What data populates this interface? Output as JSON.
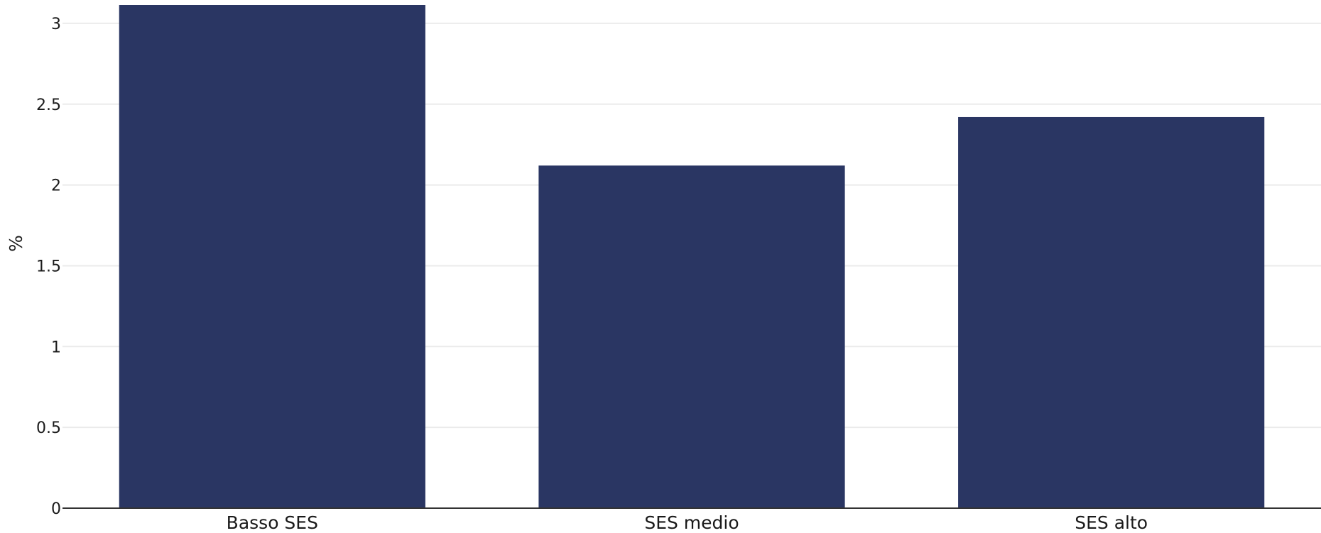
{
  "chart_data": {
    "type": "bar",
    "title": "",
    "xlabel": "",
    "ylabel": "%",
    "categories": [
      "Basso SES",
      "SES medio",
      "SES alto"
    ],
    "values": [
      3.12,
      2.12,
      2.42
    ],
    "ylim": [
      0,
      3.1
    ],
    "yticks": [
      0,
      0.5,
      1,
      1.5,
      2,
      2.5,
      3
    ],
    "ytick_labels": [
      "0",
      "0.5",
      "1",
      "1.5",
      "2",
      "2.5",
      "3"
    ],
    "bar_color": "#2a3663",
    "grid": true,
    "legend": "none"
  }
}
